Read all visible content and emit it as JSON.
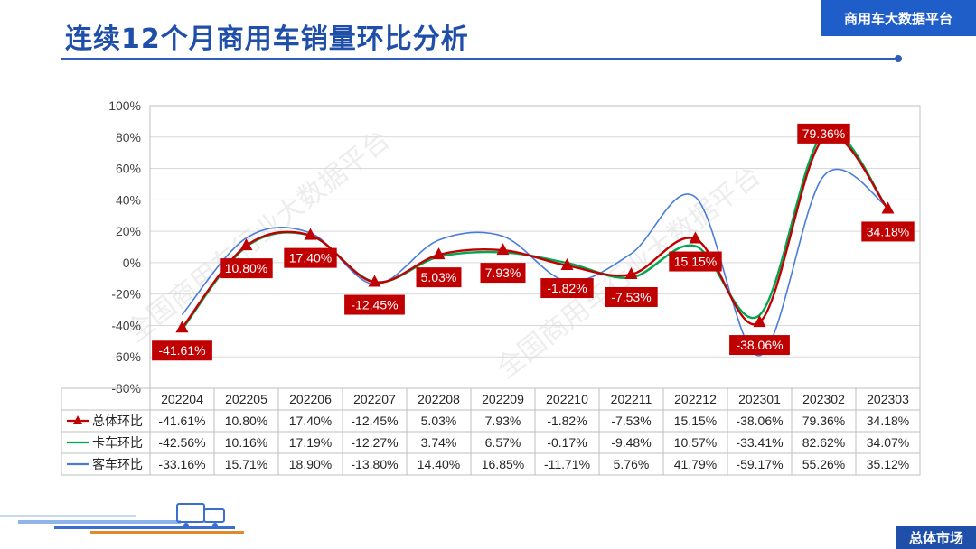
{
  "page": {
    "title": "连续12个月商用车销量环比分析",
    "brand": "商用车大数据平台",
    "footer": "总体市场"
  },
  "colors": {
    "total": "#c00000",
    "truck": "#00a650",
    "bus": "#4a7cd8",
    "brand_blue": "#1f5dc8"
  },
  "chart_data": {
    "type": "line",
    "categories": [
      "202204",
      "202205",
      "202206",
      "202207",
      "202208",
      "202209",
      "202210",
      "202211",
      "202212",
      "202301",
      "202302",
      "202303"
    ],
    "y_ticks": [
      "100%",
      "80%",
      "60%",
      "40%",
      "20%",
      "0%",
      "-20%",
      "-40%",
      "-60%",
      "-80%"
    ],
    "ylim": [
      -80,
      100
    ],
    "y_unit": "%",
    "grid": true,
    "series": [
      {
        "name": "总体环比",
        "color": "#c00000",
        "marker": "triangle",
        "values": [
          -41.61,
          10.8,
          17.4,
          -12.45,
          5.03,
          7.93,
          -1.82,
          -7.53,
          15.15,
          -38.06,
          79.36,
          34.18
        ],
        "labels": [
          "-41.61%",
          "10.80%",
          "17.40%",
          "-12.45%",
          "5.03%",
          "7.93%",
          "-1.82%",
          "-7.53%",
          "15.15%",
          "-38.06%",
          "79.36%",
          "34.18%"
        ]
      },
      {
        "name": "卡车环比",
        "color": "#00a650",
        "values": [
          -42.56,
          10.16,
          17.19,
          -12.27,
          3.74,
          6.57,
          -0.17,
          -9.48,
          10.57,
          -33.41,
          82.62,
          34.07
        ],
        "labels": [
          "-42.56%",
          "10.16%",
          "17.19%",
          "-12.27%",
          "3.74%",
          "6.57%",
          "-0.17%",
          "-9.48%",
          "10.57%",
          "-33.41%",
          "82.62%",
          "34.07%"
        ]
      },
      {
        "name": "客车环比",
        "color": "#4a7cd8",
        "values": [
          -33.16,
          15.71,
          18.9,
          -13.8,
          14.4,
          16.85,
          -11.71,
          5.76,
          41.79,
          -59.17,
          55.26,
          35.12
        ],
        "labels": [
          "-33.16%",
          "15.71%",
          "18.90%",
          "-13.80%",
          "14.40%",
          "16.85%",
          "-11.71%",
          "5.76%",
          "41.79%",
          "-59.17%",
          "55.26%",
          "35.12%"
        ]
      }
    ],
    "watermarks": [
      "全国商用车行业大数据平台",
      "全国商用车行业大数据平台"
    ]
  }
}
